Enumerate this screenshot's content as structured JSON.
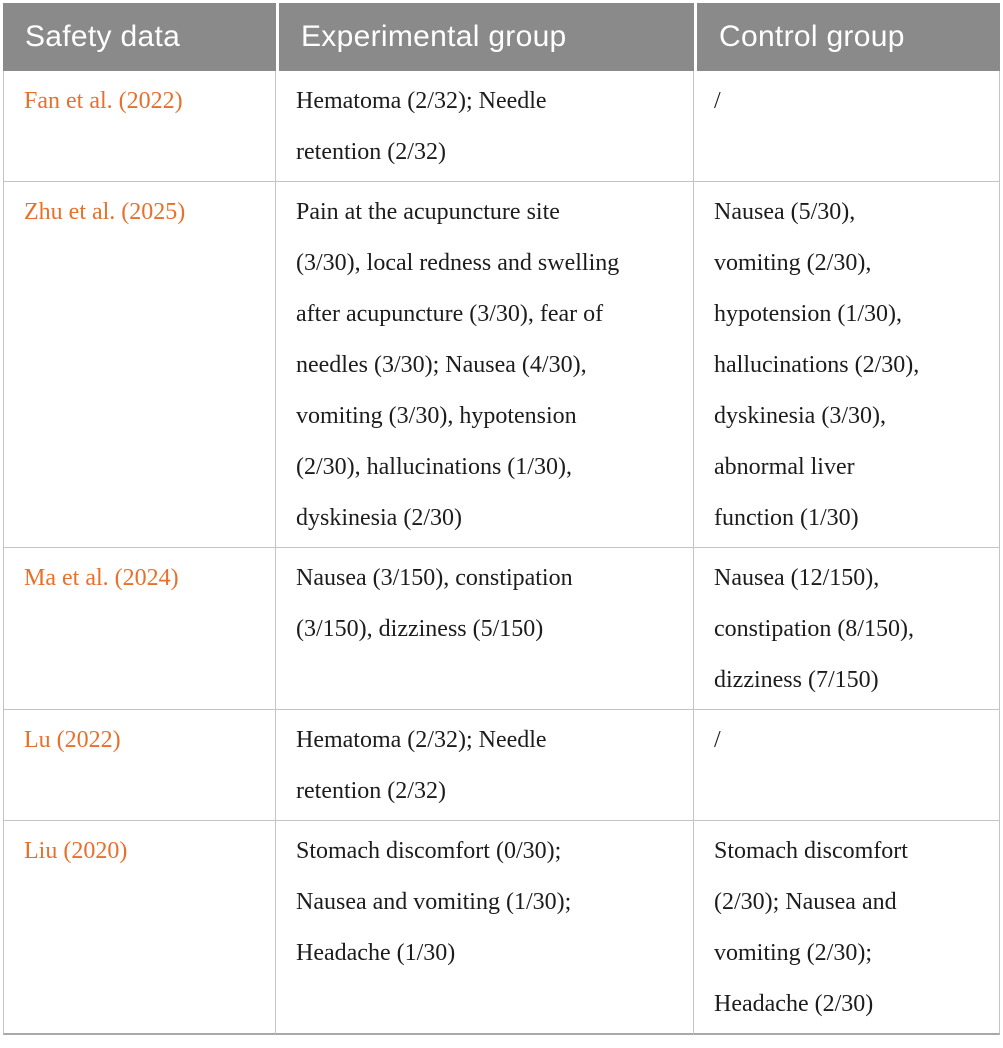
{
  "colors": {
    "header_background": "#8a8a8a",
    "header_text": "#ffffff",
    "citation_orange": "#e8702d",
    "body_text": "#1c1c1c",
    "grid_line": "#c4c4c4",
    "bottom_border": "#a9a9a9"
  },
  "table": {
    "headers": [
      "Safety data",
      "Experimental group",
      "Control group"
    ],
    "rows": [
      {
        "study": "Fan et al. (2022)",
        "experimental": "Hematoma (2/32); Needle\nretention (2/32)",
        "control": "/"
      },
      {
        "study": "Zhu et al. (2025)",
        "experimental": "Pain at the acupuncture site\n(3/30), local redness and swelling\nafter acupuncture (3/30), fear of\nneedles (3/30); Nausea (4/30),\nvomiting (3/30), hypotension\n(2/30), hallucinations (1/30),\ndyskinesia (2/30)",
        "control": "Nausea (5/30),\nvomiting (2/30),\nhypotension (1/30),\nhallucinations (2/30),\ndyskinesia (3/30),\nabnormal liver\nfunction (1/30)"
      },
      {
        "study": "Ma et al. (2024)",
        "experimental": "Nausea (3/150), constipation\n(3/150), dizziness (5/150)",
        "control": "Nausea (12/150),\nconstipation (8/150),\ndizziness (7/150)"
      },
      {
        "study": "Lu (2022)",
        "experimental": "Hematoma (2/32); Needle\nretention (2/32)",
        "control": "/"
      },
      {
        "study": "Liu (2020)",
        "experimental": "Stomach discomfort (0/30);\nNausea and vomiting (1/30);\nHeadache (1/30)",
        "control": "Stomach discomfort\n(2/30); Nausea and\nvomiting (2/30);\nHeadache (2/30)"
      }
    ]
  }
}
